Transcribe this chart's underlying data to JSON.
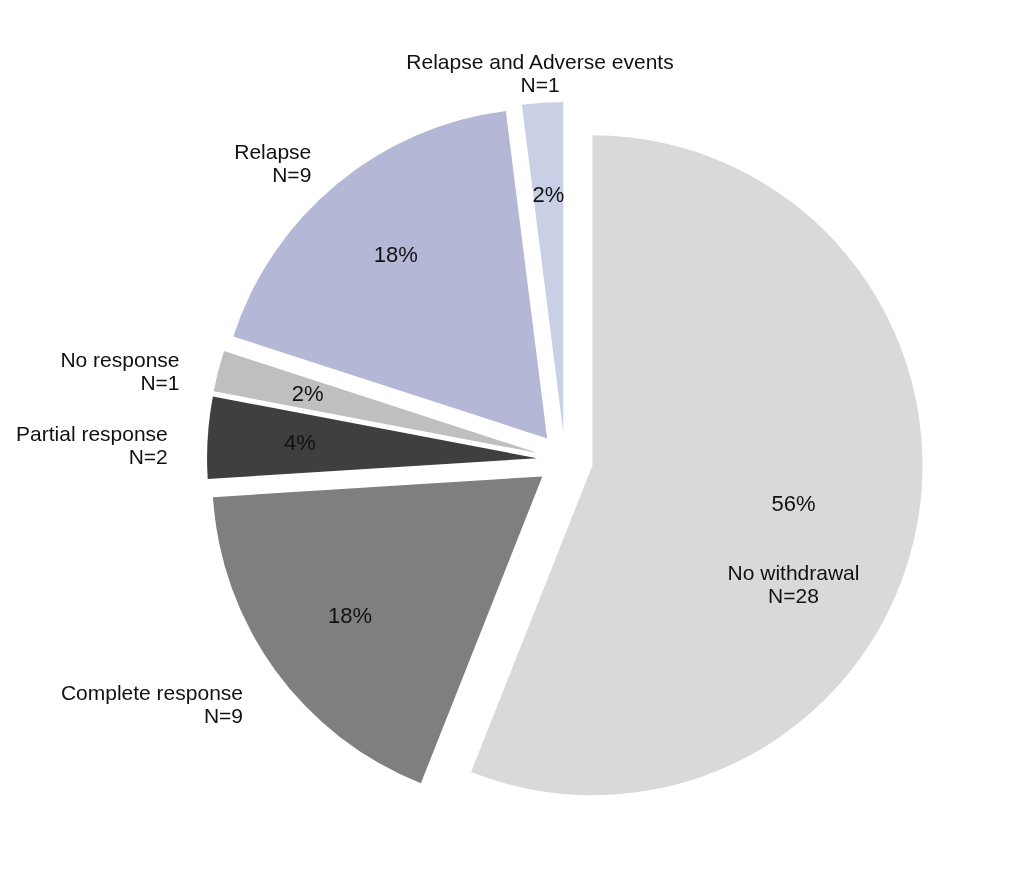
{
  "chart_data": {
    "type": "pie",
    "categories": [
      "No withdrawal\nN=28",
      "Complete response\nN=9",
      "Partial response\nN=2",
      "No response\nN=1",
      "Relapse\nN=9",
      "Relapse and Adverse events\nN=1"
    ],
    "values": [
      56,
      18,
      4,
      2,
      18,
      2
    ],
    "value_labels": [
      "56%",
      "18%",
      "4%",
      "2%",
      "18%",
      "2%"
    ],
    "colors": [
      "#d9d9d9",
      "#7f7f7f",
      "#3f3f3f",
      "#bfbfbf",
      "#b4b8d6",
      "#c9d0e6"
    ]
  }
}
